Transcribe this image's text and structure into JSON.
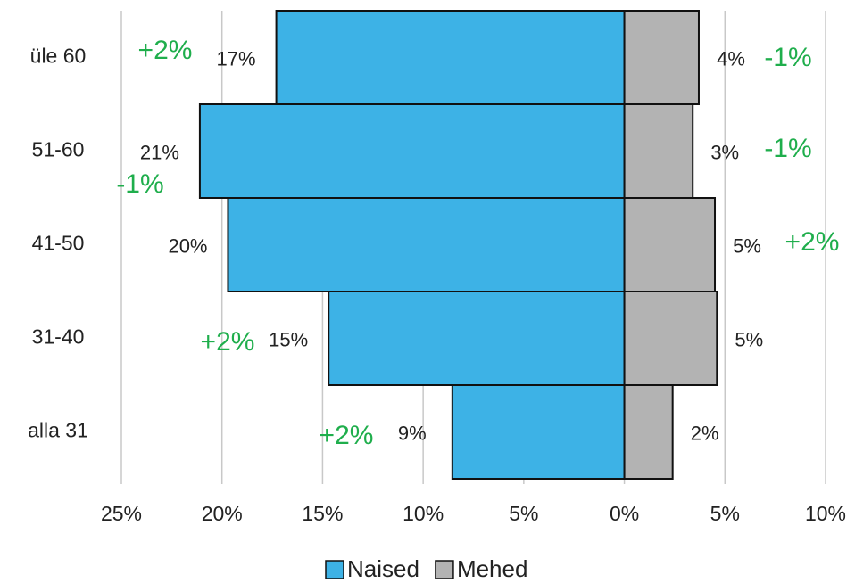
{
  "chart_data": {
    "type": "pyramid",
    "categories": [
      "üle 60",
      "51-60",
      "41-50",
      "31-40",
      "alla 31"
    ],
    "series": [
      {
        "name": "Naised",
        "color": "#3db2e6",
        "values": [
          -17.3,
          -21.1,
          -19.7,
          -14.7,
          -8.55
        ],
        "value_labels": [
          "17%",
          "21%",
          "20%",
          "15%",
          "9%"
        ],
        "changes": [
          "+2%",
          "-1%",
          null,
          "+2%",
          "+2%"
        ]
      },
      {
        "name": "Mehed",
        "color": "#b3b3b3",
        "values": [
          3.7,
          3.4,
          4.5,
          4.6,
          2.4
        ],
        "value_labels": [
          "4%",
          "3%",
          "5%",
          "5%",
          "2%"
        ],
        "changes": [
          "-1%",
          "-1%",
          "+2%",
          null,
          null
        ]
      }
    ],
    "xlim": [
      -25,
      10
    ],
    "xticks": [
      {
        "value": -25,
        "label": "25%"
      },
      {
        "value": -20,
        "label": "20%"
      },
      {
        "value": -15,
        "label": "15%"
      },
      {
        "value": -10,
        "label": "10%"
      },
      {
        "value": -5,
        "label": "5%"
      },
      {
        "value": 0,
        "label": "0%"
      },
      {
        "value": 5,
        "label": "5%"
      },
      {
        "value": 10,
        "label": "10%"
      }
    ],
    "grid": true
  }
}
